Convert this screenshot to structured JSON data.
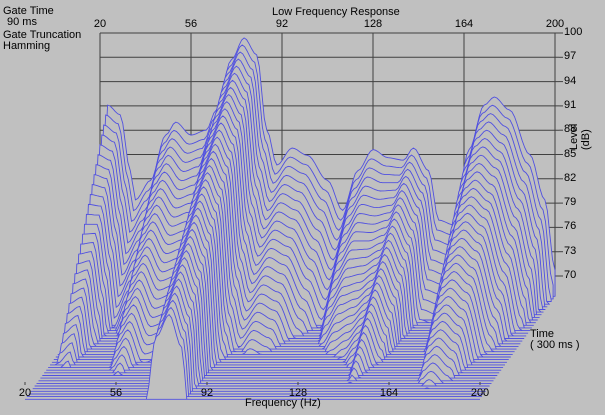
{
  "info": {
    "gate_time_label": "Gate Time",
    "gate_time_value": "90 ms",
    "gate_truncation_label": "Gate Truncation",
    "gate_truncation_value": "Hamming"
  },
  "colors": {
    "background": "#c0c0c0",
    "grid": "#404040",
    "trace": "#5050e0"
  },
  "chart_data": {
    "type": "waterfall",
    "title": "Low Frequency Response",
    "xlabel": "Frequency (Hz)",
    "ylabel": "Level (dB)",
    "zlabel": "Time",
    "z_range_label": "( 300 ms )",
    "x_ticks": [
      20,
      56,
      92,
      128,
      164,
      200
    ],
    "y_ticks": [
      100,
      97,
      94,
      91,
      88,
      85,
      82,
      79,
      76,
      73,
      70
    ],
    "xlim": [
      20,
      200
    ],
    "ylim": [
      67,
      100
    ],
    "time_range_ms": [
      0,
      300
    ],
    "num_slices": 40,
    "grid": true,
    "first_slice": {
      "freq_hz": [
        20,
        23,
        28,
        32,
        34,
        40,
        46,
        50,
        56,
        62,
        66,
        72,
        77,
        82,
        86,
        90,
        96,
        102,
        110,
        116,
        122,
        128,
        134,
        140,
        144,
        150,
        154,
        160,
        166,
        172,
        176,
        182,
        190,
        196,
        200
      ],
      "level_db": [
        68,
        91.1,
        89.9,
        83,
        79.4,
        81.8,
        87.4,
        89,
        87.4,
        88,
        90.5,
        96.7,
        99.4,
        97.3,
        88,
        83.7,
        85.8,
        84.9,
        81.8,
        78.1,
        83,
        85.6,
        84.6,
        84.3,
        85.8,
        83,
        76.9,
        76.3,
        85.6,
        91.1,
        92.1,
        90.5,
        85,
        79.4,
        70.7
      ]
    },
    "decay_db_per_slice": [
      1.6,
      0.9,
      0.8,
      0.8,
      1.0,
      0.9,
      0.7,
      0.7,
      0.8,
      0.8,
      0.7,
      0.55,
      0.55,
      0.6,
      0.8,
      0.8,
      0.8,
      0.8,
      0.9,
      0.9,
      0.8,
      0.8,
      0.7,
      0.6,
      0.55,
      0.6,
      0.9,
      0.9,
      0.8,
      0.7,
      0.7,
      0.7,
      0.8,
      0.9,
      1.5
    ]
  }
}
